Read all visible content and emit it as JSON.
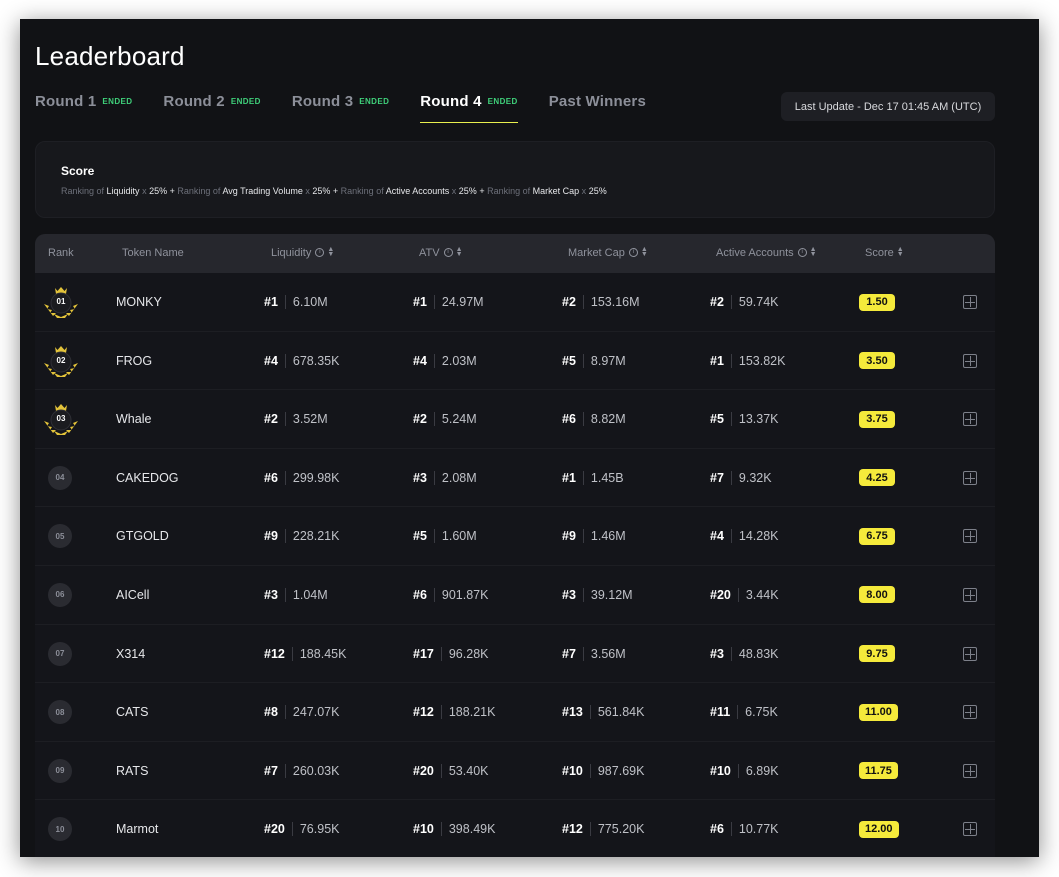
{
  "page": {
    "title": "Leaderboard"
  },
  "tabs": [
    {
      "label": "Round 1",
      "badge": "ENDED"
    },
    {
      "label": "Round 2",
      "badge": "ENDED"
    },
    {
      "label": "Round 3",
      "badge": "ENDED"
    },
    {
      "label": "Round 4",
      "badge": "ENDED",
      "active": true
    },
    {
      "label": "Past Winners",
      "badge": ""
    }
  ],
  "last_update": "Last Update - Dec 17 01:45 AM (UTC)",
  "score_card": {
    "title": "Score",
    "formula": [
      {
        "pre": "Ranking of ",
        "metric": "Liquidity",
        "weight": "25%"
      },
      {
        "pre": "Ranking of ",
        "metric": "Avg Trading Volume",
        "weight": "25%"
      },
      {
        "pre": "Ranking of ",
        "metric": "Active Accounts",
        "weight": "25%"
      },
      {
        "pre": "Ranking of ",
        "metric": "Market Cap",
        "weight": "25%"
      }
    ],
    "times": "x",
    "plus": "+"
  },
  "table": {
    "headers": {
      "rank": "Rank",
      "token": "Token Name",
      "liquidity": "Liquidity",
      "atv": "ATV",
      "market_cap": "Market Cap",
      "active_accounts": "Active Accounts",
      "score": "Score"
    },
    "rows": [
      {
        "rank": "01",
        "token": "MONKY",
        "liq_rank": "#1",
        "liq": "6.10M",
        "atv_rank": "#1",
        "atv": "24.97M",
        "mc_rank": "#2",
        "mc": "153.16M",
        "aa_rank": "#2",
        "aa": "59.74K",
        "score": "1.50",
        "top": true
      },
      {
        "rank": "02",
        "token": "FROG",
        "liq_rank": "#4",
        "liq": "678.35K",
        "atv_rank": "#4",
        "atv": "2.03M",
        "mc_rank": "#5",
        "mc": "8.97M",
        "aa_rank": "#1",
        "aa": "153.82K",
        "score": "3.50",
        "top": true
      },
      {
        "rank": "03",
        "token": "Whale",
        "liq_rank": "#2",
        "liq": "3.52M",
        "atv_rank": "#2",
        "atv": "5.24M",
        "mc_rank": "#6",
        "mc": "8.82M",
        "aa_rank": "#5",
        "aa": "13.37K",
        "score": "3.75",
        "top": true
      },
      {
        "rank": "04",
        "token": "CAKEDOG",
        "liq_rank": "#6",
        "liq": "299.98K",
        "atv_rank": "#3",
        "atv": "2.08M",
        "mc_rank": "#1",
        "mc": "1.45B",
        "aa_rank": "#7",
        "aa": "9.32K",
        "score": "4.25",
        "top": false
      },
      {
        "rank": "05",
        "token": "GTGOLD",
        "liq_rank": "#9",
        "liq": "228.21K",
        "atv_rank": "#5",
        "atv": "1.60M",
        "mc_rank": "#9",
        "mc": "1.46M",
        "aa_rank": "#4",
        "aa": "14.28K",
        "score": "6.75",
        "top": false
      },
      {
        "rank": "06",
        "token": "AICell",
        "liq_rank": "#3",
        "liq": "1.04M",
        "atv_rank": "#6",
        "atv": "901.87K",
        "mc_rank": "#3",
        "mc": "39.12M",
        "aa_rank": "#20",
        "aa": "3.44K",
        "score": "8.00",
        "top": false
      },
      {
        "rank": "07",
        "token": "X314",
        "liq_rank": "#12",
        "liq": "188.45K",
        "atv_rank": "#17",
        "atv": "96.28K",
        "mc_rank": "#7",
        "mc": "3.56M",
        "aa_rank": "#3",
        "aa": "48.83K",
        "score": "9.75",
        "top": false
      },
      {
        "rank": "08",
        "token": "CATS",
        "liq_rank": "#8",
        "liq": "247.07K",
        "atv_rank": "#12",
        "atv": "188.21K",
        "mc_rank": "#13",
        "mc": "561.84K",
        "aa_rank": "#11",
        "aa": "6.75K",
        "score": "11.00",
        "top": false
      },
      {
        "rank": "09",
        "token": "RATS",
        "liq_rank": "#7",
        "liq": "260.03K",
        "atv_rank": "#20",
        "atv": "53.40K",
        "mc_rank": "#10",
        "mc": "987.69K",
        "aa_rank": "#10",
        "aa": "6.89K",
        "score": "11.75",
        "top": false
      },
      {
        "rank": "10",
        "token": "Marmot",
        "liq_rank": "#20",
        "liq": "76.95K",
        "atv_rank": "#10",
        "atv": "398.49K",
        "mc_rank": "#12",
        "mc": "775.20K",
        "aa_rank": "#6",
        "aa": "10.77K",
        "score": "12.00",
        "top": false
      }
    ]
  },
  "icons": {
    "info": "info-icon",
    "sort": "sort-icon",
    "detail": "calculator-icon",
    "crown": "crown-icon"
  },
  "colors": {
    "accent": "#f5ea3b",
    "ended": "#3fd07a",
    "background": "#111215"
  }
}
